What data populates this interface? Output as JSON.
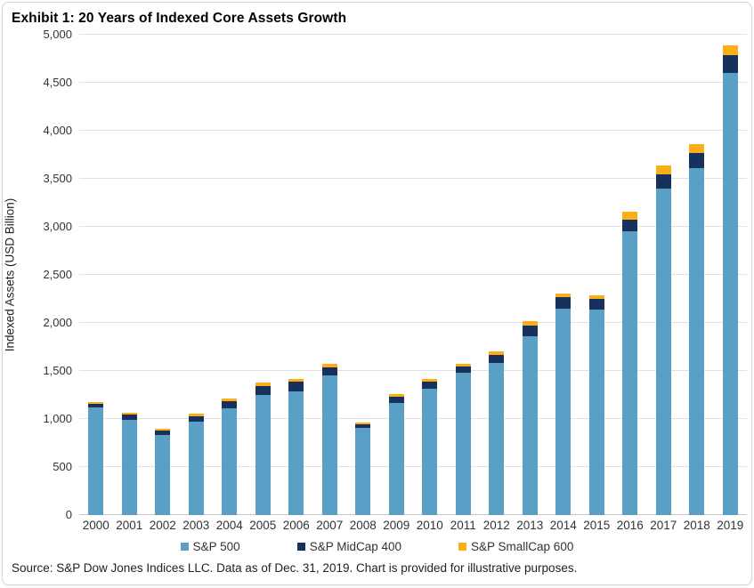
{
  "title": "Exhibit 1: 20 Years of Indexed Core Assets Growth",
  "source_note": "Source: S&P Dow Jones Indices LLC. Data as of Dec. 31, 2019. Chart is provided for illustrative purposes.",
  "colors": {
    "sp500": "#5a9fc6",
    "midcap": "#17315c",
    "smallcap": "#fbae18",
    "gridline": "#e2e2e2",
    "axis_text": "#333333"
  },
  "chart_data": {
    "type": "bar",
    "subtype": "stacked",
    "title": "Exhibit 1: 20 Years of Indexed Core Assets Growth",
    "xlabel": "",
    "ylabel": "Indexed Assets (USD Billion)",
    "ylim": [
      0,
      5000
    ],
    "ytick_step": 500,
    "ytick_labels": [
      "0",
      "500",
      "1,000",
      "1,500",
      "2,000",
      "2,500",
      "3,000",
      "3,500",
      "4,000",
      "4,500",
      "5,000"
    ],
    "grid": "horizontal",
    "legend_position": "bottom",
    "categories": [
      "2000",
      "2001",
      "2002",
      "2003",
      "2004",
      "2005",
      "2006",
      "2007",
      "2008",
      "2009",
      "2010",
      "2011",
      "2012",
      "2013",
      "2014",
      "2015",
      "2016",
      "2017",
      "2018",
      "2019"
    ],
    "series": [
      {
        "name": "S&P 500",
        "color": "#5a9fc6",
        "values": [
          1120,
          990,
          830,
          970,
          1110,
          1250,
          1290,
          1450,
          905,
          1165,
          1315,
          1480,
          1580,
          1860,
          2145,
          2135,
          2955,
          3400,
          3615,
          4600
        ]
      },
      {
        "name": "S&P MidCap 400",
        "color": "#17315c",
        "values": [
          40,
          55,
          50,
          60,
          75,
          95,
          95,
          90,
          40,
          70,
          70,
          65,
          90,
          115,
          125,
          115,
          115,
          150,
          155,
          190
        ]
      },
      {
        "name": "S&P SmallCap 600",
        "color": "#fbae18",
        "values": [
          15,
          20,
          20,
          25,
          30,
          35,
          35,
          35,
          20,
          25,
          30,
          30,
          30,
          45,
          40,
          40,
          90,
          90,
          90,
          100
        ]
      }
    ]
  }
}
